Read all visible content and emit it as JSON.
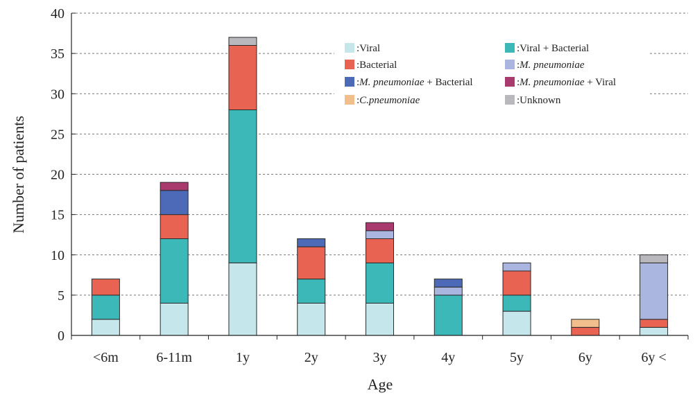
{
  "chart_data": {
    "type": "bar",
    "stacked": true,
    "title": "",
    "xlabel": "Age",
    "ylabel": "Number  of  patients",
    "ylim": [
      0,
      40
    ],
    "yticks": [
      0,
      5,
      10,
      15,
      20,
      25,
      30,
      35,
      40
    ],
    "grid": "dashed horizontal",
    "legend_position": "top-right",
    "categories": [
      "<6m",
      "6-11m",
      "1y",
      "2y",
      "3y",
      "4y",
      "5y",
      "6y",
      "6y <"
    ],
    "series": [
      {
        "key": "viral",
        "prefix": ":",
        "name": "Viral",
        "italic": "",
        "suffix": "",
        "color": "#c5e6ea",
        "values": [
          2,
          4,
          9,
          4,
          4,
          0,
          3,
          0,
          1
        ]
      },
      {
        "key": "viral_bacterial",
        "prefix": ":",
        "name": "Viral + Bacterial",
        "italic": "",
        "suffix": "",
        "color": "#3db8b8",
        "values": [
          3,
          8,
          19,
          3,
          5,
          5,
          2,
          0,
          0
        ]
      },
      {
        "key": "bacterial",
        "prefix": ":",
        "name": "Bacterial",
        "italic": "",
        "suffix": "",
        "color": "#e96352",
        "values": [
          2,
          3,
          8,
          4,
          3,
          0,
          3,
          1,
          1
        ]
      },
      {
        "key": "mpneumoniae",
        "prefix": ":",
        "name": "M. pneumoniae",
        "italic": "M. pneumoniae",
        "suffix": "",
        "color": "#aab6e0",
        "values": [
          0,
          0,
          0,
          0,
          1,
          1,
          1,
          0,
          7
        ]
      },
      {
        "key": "mpneumoniae_bacterial",
        "prefix": ":",
        "name": "M. pneumoniae + Bacterial",
        "italic": "M. pneumoniae",
        "suffix": " + Bacterial",
        "color": "#4d6ab8",
        "values": [
          0,
          3,
          0,
          1,
          0,
          1,
          0,
          0,
          0
        ]
      },
      {
        "key": "mpneumoniae_viral",
        "prefix": ":",
        "name": "M. pneumoniae + Viral",
        "italic": "M. pneumoniae",
        "suffix": " + Viral",
        "color": "#a83a6e",
        "values": [
          0,
          1,
          0,
          0,
          1,
          0,
          0,
          0,
          0
        ]
      },
      {
        "key": "cpneumoniae",
        "prefix": ":",
        "name": "C.pneumoniae",
        "italic": "C.pneumoniae",
        "suffix": "",
        "color": "#f2bf8c",
        "values": [
          0,
          0,
          0,
          0,
          0,
          0,
          0,
          1,
          0
        ]
      },
      {
        "key": "unknown",
        "prefix": ":",
        "name": "Unknown",
        "italic": "",
        "suffix": "",
        "color": "#b9b9bd",
        "values": [
          0,
          0,
          1,
          0,
          0,
          0,
          0,
          0,
          1
        ]
      }
    ]
  }
}
